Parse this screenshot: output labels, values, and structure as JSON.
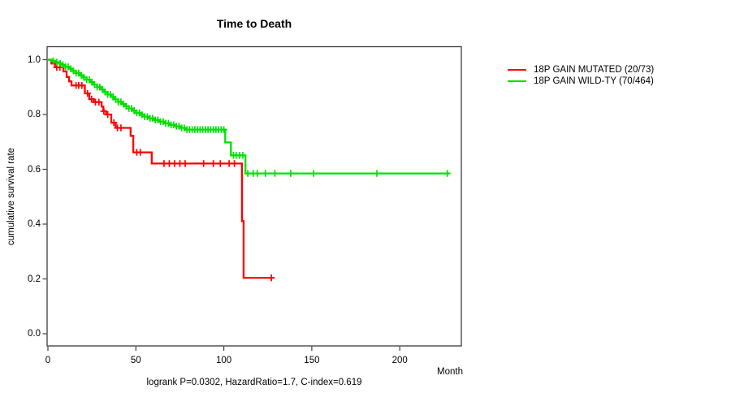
{
  "title": "Time to Death",
  "footer": "logrank P=0.0302, HazardRatio=1.7, C-index=0.619",
  "axes": {
    "x_title": "Month",
    "y_title": "cumulative survival rate"
  },
  "chart_data": {
    "type": "line",
    "subtype": "kaplan-meier-step",
    "title": "Time to Death",
    "xlabel": "Month",
    "ylabel": "cumulative survival rate",
    "annotation": "logrank P=0.0302, HazardRatio=1.7, C-index=0.619",
    "xlim": [
      0,
      235
    ],
    "ylim": [
      0,
      1.05
    ],
    "x_ticks": [
      0,
      50,
      100,
      150,
      200
    ],
    "x_tick_labels": [
      "0",
      "50",
      "100",
      "150",
      "200"
    ],
    "y_ticks": [
      0.0,
      0.2,
      0.4,
      0.6,
      0.8,
      1.0
    ],
    "y_tick_labels": [
      "0.0",
      "0.2",
      "0.4",
      "0.6",
      "0.8",
      "1.0"
    ],
    "grid": false,
    "legend_position": "outside-right",
    "series": [
      {
        "name": "18P GAIN MUTATED (20/73)",
        "color": "#ff0000",
        "events_total": "20/73",
        "steps": [
          [
            0,
            1.0
          ],
          [
            2,
            0.986
          ],
          [
            4,
            0.972
          ],
          [
            8.8,
            0.957
          ],
          [
            10.6,
            0.937
          ],
          [
            12,
            0.921
          ],
          [
            13.4,
            0.906
          ],
          [
            21,
            0.877
          ],
          [
            23.5,
            0.856
          ],
          [
            26,
            0.845
          ],
          [
            30.5,
            0.829
          ],
          [
            31.5,
            0.812
          ],
          [
            33,
            0.8
          ],
          [
            36,
            0.77
          ],
          [
            38.5,
            0.751
          ],
          [
            47,
            0.722
          ],
          [
            48.5,
            0.662
          ],
          [
            59,
            0.621
          ],
          [
            110.3,
            0.411
          ],
          [
            111.2,
            0.204
          ],
          [
            128.5,
            0.204
          ]
        ],
        "censor_months": [
          5,
          6.8,
          16,
          17.5,
          19.3,
          22.5,
          24.8,
          27,
          29,
          31.8,
          34,
          37.5,
          39.5,
          41.5,
          50.5,
          52.5,
          66,
          69,
          72,
          75,
          78,
          88.5,
          94,
          98,
          103,
          106,
          127
        ]
      },
      {
        "name": "18P GAIN WILD-TY (70/464)",
        "color": "#00e000",
        "events_total": "70/464",
        "steps": [
          [
            0,
            1.0
          ],
          [
            2,
            0.996
          ],
          [
            4,
            0.991
          ],
          [
            6,
            0.986
          ],
          [
            8,
            0.981
          ],
          [
            10,
            0.974
          ],
          [
            12,
            0.967
          ],
          [
            14,
            0.959
          ],
          [
            16,
            0.951
          ],
          [
            18,
            0.943
          ],
          [
            20,
            0.935
          ],
          [
            22,
            0.927
          ],
          [
            24,
            0.918
          ],
          [
            26,
            0.909
          ],
          [
            28,
            0.9
          ],
          [
            30,
            0.891
          ],
          [
            32,
            0.882
          ],
          [
            34,
            0.873
          ],
          [
            36,
            0.864
          ],
          [
            38,
            0.855
          ],
          [
            40,
            0.846
          ],
          [
            42,
            0.838
          ],
          [
            44,
            0.83
          ],
          [
            46,
            0.822
          ],
          [
            48,
            0.814
          ],
          [
            50,
            0.806
          ],
          [
            52.5,
            0.799
          ],
          [
            55,
            0.792
          ],
          [
            57.5,
            0.786
          ],
          [
            60,
            0.78
          ],
          [
            63,
            0.774
          ],
          [
            66,
            0.768
          ],
          [
            69,
            0.762
          ],
          [
            72,
            0.757
          ],
          [
            75,
            0.751
          ],
          [
            78,
            0.745
          ],
          [
            100.8,
            0.698
          ],
          [
            104,
            0.651
          ],
          [
            112.3,
            0.585
          ],
          [
            228.3,
            0.585
          ]
        ],
        "censor_months": [
          3,
          5,
          7,
          8.5,
          10,
          11.5,
          13,
          14.5,
          16,
          17.5,
          19,
          20.5,
          22,
          23.5,
          25,
          26.5,
          28,
          29.5,
          31,
          32.5,
          34,
          35.5,
          37,
          38.5,
          40,
          41.5,
          43,
          44.5,
          46,
          47.5,
          49,
          50.5,
          52,
          53.5,
          55,
          56.5,
          58,
          59.5,
          61,
          62.5,
          64,
          65.5,
          67,
          68.5,
          70,
          71.5,
          73,
          74.5,
          76,
          77.5,
          79,
          80.5,
          82,
          83.5,
          85,
          86.5,
          88,
          89.5,
          91,
          92.5,
          94,
          95.5,
          97,
          98.5,
          100,
          105.5,
          107,
          109,
          110.8,
          113.6,
          116.7,
          119,
          123.6,
          129,
          138,
          151,
          187,
          227
        ]
      }
    ]
  },
  "layout_colors": {
    "axis": "#3c3c3c",
    "text": "#000000",
    "background": "#ffffff"
  }
}
